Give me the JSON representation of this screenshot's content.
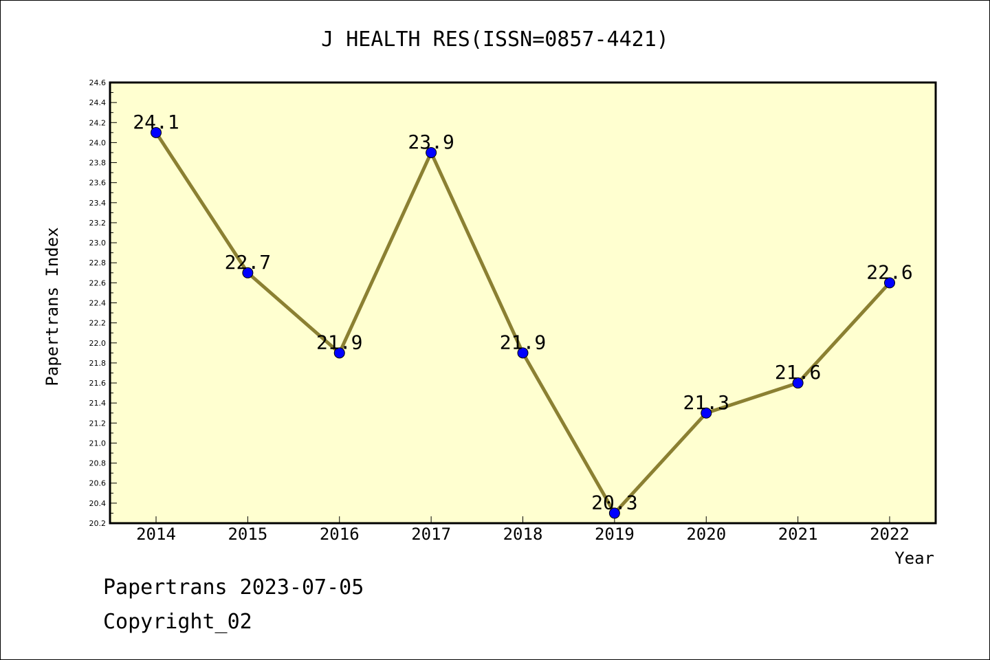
{
  "chart_data": {
    "type": "line",
    "title": "J HEALTH RES(ISSN=0857-4421)",
    "xlabel": "Year",
    "ylabel": "Papertrans Index",
    "categories": [
      "2014",
      "2015",
      "2016",
      "2017",
      "2018",
      "2019",
      "2020",
      "2021",
      "2022"
    ],
    "series": [
      {
        "values": [
          24.1,
          22.7,
          21.9,
          23.9,
          21.9,
          20.3,
          21.3,
          21.6,
          22.6
        ],
        "labels": [
          "24.1",
          "22.7",
          "21.9",
          "23.9",
          "21.9",
          "20.3",
          "21.3",
          "21.6",
          "22.6"
        ]
      }
    ],
    "ylim": [
      20.2,
      24.6
    ],
    "yticks": [
      "20.2",
      "20.4",
      "20.6",
      "20.8",
      "21.0",
      "21.2",
      "21.4",
      "21.6",
      "21.8",
      "22.0",
      "22.2",
      "22.4",
      "22.6",
      "22.8",
      "23.0",
      "23.2",
      "23.4",
      "23.6",
      "23.8",
      "24.0",
      "24.2",
      "24.4",
      "24.6"
    ],
    "grid": false,
    "legend": "none",
    "colors": {
      "plot_background": "#ffffd0",
      "line": "#8b8032",
      "marker": "#0000ff",
      "frame": "#000000"
    }
  },
  "footer": {
    "line1": "Papertrans 2023-07-05",
    "line2": "Copyright_02"
  }
}
